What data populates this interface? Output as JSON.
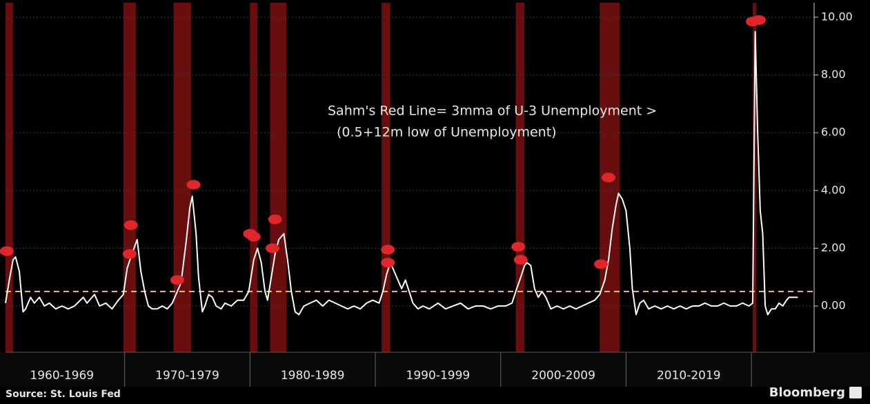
{
  "chart_data": {
    "type": "line",
    "annotation": [
      "Sahm's Red Line= 3mma of U-3 Unemployment >",
      "(0.5+12m low of Unemployment)"
    ],
    "source": "Source: St. Louis Fed",
    "brand": "Bloomberg",
    "xlim": [
      1960.5,
      2025
    ],
    "ylim": [
      -1.6,
      10.5
    ],
    "yticks": [
      {
        "value": 0,
        "label": "0.00"
      },
      {
        "value": 2,
        "label": "2.00"
      },
      {
        "value": 4,
        "label": "4.00"
      },
      {
        "value": 6,
        "label": "6.00"
      },
      {
        "value": 8,
        "label": "8.00"
      },
      {
        "value": 10,
        "label": "10.00"
      }
    ],
    "grid": true,
    "decade_labels": [
      "1960-1969",
      "1970-1979",
      "1980-1989",
      "1990-1999",
      "2000-2009",
      "2010-2019"
    ],
    "decade_bounds": [
      1960,
      1970,
      1980,
      1990,
      2000,
      2010,
      2020
    ],
    "threshold": {
      "value": 0.5,
      "color": "#e8c36a"
    },
    "recession_color": "#7a1010",
    "recessions": [
      [
        1960.5,
        1961.1
      ],
      [
        1969.9,
        1970.9
      ],
      [
        1973.9,
        1975.3
      ],
      [
        1980.0,
        1980.6
      ],
      [
        1981.6,
        1982.9
      ],
      [
        1990.5,
        1991.2
      ],
      [
        2001.2,
        2001.9
      ],
      [
        2007.9,
        2009.5
      ],
      [
        2020.1,
        2020.4
      ]
    ],
    "signal_color": "#e0262a",
    "signals": {
      "x": [
        1960.6,
        1970.5,
        1970.4,
        1974.2,
        1975.5,
        1980.0,
        1980.3,
        1981.8,
        1982.0,
        1991.0,
        1991.0,
        2001.4,
        2001.6,
        2008.0,
        2008.6,
        2020.1,
        2020.6
      ],
      "values": [
        1.9,
        2.8,
        1.8,
        0.9,
        4.2,
        2.5,
        2.4,
        2.0,
        3.0,
        1.95,
        1.5,
        2.05,
        1.6,
        1.45,
        4.45,
        9.85,
        9.9
      ]
    },
    "series": [
      {
        "color": "#ffffff",
        "x": [
          1960.5,
          1960.8,
          1961.1,
          1961.3,
          1961.6,
          1961.9,
          1962.1,
          1962.5,
          1962.8,
          1963.2,
          1963.6,
          1964.0,
          1964.5,
          1965.0,
          1965.5,
          1966.0,
          1966.7,
          1967.0,
          1967.6,
          1968.0,
          1968.5,
          1969.0,
          1969.5,
          1969.9,
          1970.2,
          1970.5,
          1971.0,
          1971.3,
          1971.6,
          1971.9,
          1972.2,
          1972.6,
          1973.0,
          1973.4,
          1973.8,
          1974.1,
          1974.5,
          1974.9,
          1975.2,
          1975.4,
          1975.7,
          1975.9,
          1976.2,
          1976.4,
          1976.7,
          1977.0,
          1977.3,
          1977.7,
          1978.0,
          1978.5,
          1979.0,
          1979.5,
          1979.9,
          1980.3,
          1980.6,
          1980.9,
          1981.2,
          1981.4,
          1981.7,
          1982.0,
          1982.3,
          1982.7,
          1983.0,
          1983.3,
          1983.6,
          1983.9,
          1984.3,
          1984.8,
          1985.3,
          1985.8,
          1986.3,
          1986.8,
          1987.3,
          1987.8,
          1988.3,
          1988.8,
          1989.3,
          1989.8,
          1990.3,
          1990.6,
          1990.9,
          1991.2,
          1991.5,
          1991.8,
          1992.1,
          1992.4,
          1992.7,
          1993.0,
          1993.4,
          1993.8,
          1994.3,
          1995.0,
          1995.6,
          1996.2,
          1996.8,
          1997.4,
          1998.0,
          1998.6,
          1999.2,
          1999.8,
          2000.4,
          2000.9,
          2001.2,
          2001.6,
          2001.9,
          2002.1,
          2002.4,
          2002.7,
          2003.0,
          2003.3,
          2003.6,
          2004.0,
          2004.5,
          2005.0,
          2005.5,
          2006.0,
          2006.5,
          2007.0,
          2007.5,
          2007.9,
          2008.3,
          2008.6,
          2008.9,
          2009.2,
          2009.4,
          2009.7,
          2010.0,
          2010.3,
          2010.5,
          2010.8,
          2011.1,
          2011.4,
          2011.8,
          2012.3,
          2012.8,
          2013.3,
          2013.8,
          2014.3,
          2014.8,
          2015.3,
          2015.8,
          2016.3,
          2016.8,
          2017.3,
          2017.8,
          2018.3,
          2018.8,
          2019.3,
          2019.8,
          2020.1,
          2020.3,
          2020.5,
          2020.7,
          2020.9,
          2021.1,
          2021.3,
          2021.6,
          2021.9,
          2022.2,
          2022.5,
          2022.8,
          2023.0,
          2023.7
        ],
        "values": [
          0.1,
          0.9,
          1.6,
          1.7,
          1.2,
          -0.2,
          -0.1,
          0.3,
          0.1,
          0.3,
          0.0,
          0.1,
          -0.1,
          0.0,
          -0.1,
          0.0,
          0.3,
          0.1,
          0.4,
          0.0,
          0.1,
          -0.1,
          0.2,
          0.4,
          1.3,
          1.7,
          2.3,
          1.2,
          0.5,
          0.0,
          -0.1,
          -0.1,
          0.0,
          -0.1,
          0.1,
          0.4,
          0.8,
          2.2,
          3.4,
          3.8,
          2.5,
          1.0,
          -0.2,
          0.0,
          0.4,
          0.3,
          0.0,
          -0.1,
          0.1,
          0.0,
          0.2,
          0.2,
          0.5,
          1.6,
          2.0,
          1.5,
          0.5,
          0.2,
          1.0,
          1.8,
          2.3,
          2.5,
          1.6,
          0.5,
          -0.2,
          -0.3,
          0.0,
          0.1,
          0.2,
          0.0,
          0.2,
          0.1,
          0.0,
          -0.1,
          0.0,
          -0.1,
          0.1,
          0.2,
          0.1,
          0.5,
          1.1,
          1.5,
          1.2,
          0.9,
          0.6,
          0.9,
          0.5,
          0.1,
          -0.1,
          0.0,
          -0.1,
          0.1,
          -0.1,
          0.0,
          0.1,
          -0.1,
          0.0,
          0.0,
          -0.1,
          0.0,
          0.0,
          0.1,
          0.5,
          1.0,
          1.4,
          1.5,
          1.4,
          0.6,
          0.3,
          0.5,
          0.3,
          -0.1,
          0.0,
          -0.1,
          0.0,
          -0.1,
          0.0,
          0.1,
          0.2,
          0.4,
          0.9,
          1.6,
          2.7,
          3.5,
          3.9,
          3.7,
          3.3,
          2.0,
          0.6,
          -0.3,
          0.1,
          0.2,
          -0.1,
          0.0,
          -0.1,
          0.0,
          -0.1,
          0.0,
          -0.1,
          0.0,
          0.0,
          0.1,
          0.0,
          0.0,
          0.1,
          0.0,
          0.0,
          0.1,
          0.0,
          0.1,
          9.5,
          6.0,
          3.3,
          2.5,
          0.0,
          -0.3,
          -0.1,
          -0.1,
          0.1,
          0.0,
          0.2,
          0.3,
          0.3
        ]
      }
    ]
  }
}
